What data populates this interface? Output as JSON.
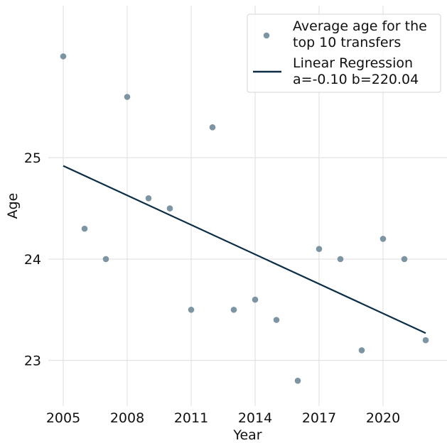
{
  "chart_data": {
    "type": "scatter",
    "xlabel": "Year",
    "ylabel": "Age",
    "xlim": [
      2004.3,
      2023.0
    ],
    "ylim": [
      22.55,
      26.5
    ],
    "xticks": [
      2005,
      2008,
      2011,
      2014,
      2017,
      2020
    ],
    "yticks": [
      23,
      24,
      25
    ],
    "grid": true,
    "legend_position": "top-right",
    "colors": {
      "points": "#7d95a3",
      "line": "#0b2e45",
      "grid": "#dcdcdc"
    },
    "series": [
      {
        "name": "Average age for the top 10 transfers",
        "type": "scatter",
        "x": [
          2005,
          2006,
          2007,
          2008,
          2009,
          2010,
          2011,
          2012,
          2013,
          2014,
          2015,
          2016,
          2017,
          2018,
          2019,
          2020,
          2021,
          2022
        ],
        "y": [
          26.0,
          24.3,
          24.0,
          25.6,
          24.6,
          24.5,
          23.5,
          25.3,
          23.5,
          23.6,
          23.4,
          22.8,
          24.1,
          24.0,
          23.1,
          24.2,
          24.0,
          23.2
        ]
      },
      {
        "name": "Linear Regression a=-0.10 b=220.04",
        "type": "line",
        "x": [
          2005,
          2022
        ],
        "y": [
          24.92,
          23.27
        ]
      }
    ],
    "legend": [
      {
        "lines": [
          "Average age for the",
          "top 10 transfers"
        ],
        "marker": "dot"
      },
      {
        "lines": [
          "Linear Regression",
          "a=-0.10 b=220.04"
        ],
        "marker": "line"
      }
    ]
  }
}
